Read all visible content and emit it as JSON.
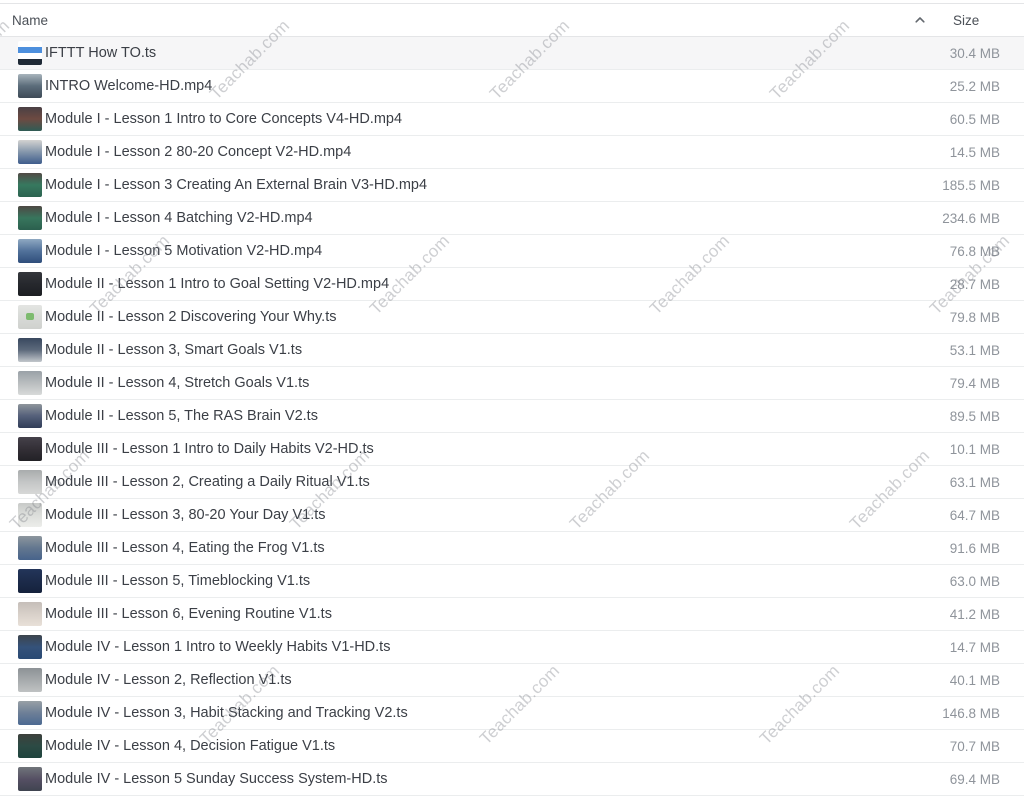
{
  "watermark": {
    "text": "Teachab.com"
  },
  "header": {
    "name_label": "Name",
    "size_label": "Size",
    "sort_direction": "ascending"
  },
  "files": [
    {
      "name": "IFTTT How TO.ts",
      "size": "30.4 MB",
      "highlighted": true,
      "striped": true,
      "thumb": [
        "#ffffff",
        "#4d8fdd",
        "#ffffff",
        "#1f2a36"
      ]
    },
    {
      "name": "INTRO Welcome-HD.mp4",
      "size": "25.2 MB",
      "thumb": [
        "#a8b4bc",
        "#5b6c7a",
        "#3e4a56"
      ]
    },
    {
      "name": "Module I - Lesson 1 Intro to Core Concepts V4-HD.mp4",
      "size": "60.5 MB",
      "thumb": [
        "#4a4044",
        "#6e4a42",
        "#2f5c55"
      ]
    },
    {
      "name": "Module I - Lesson 2 80-20 Concept V2-HD.mp4",
      "size": "14.5 MB",
      "thumb": [
        "#d3d3d1",
        "#8496ab",
        "#3f5d8c"
      ]
    },
    {
      "name": "Module I - Lesson 3 Creating An External Brain V3-HD.mp4",
      "size": "185.5 MB",
      "thumb": [
        "#514a46",
        "#37795f",
        "#2c6350"
      ]
    },
    {
      "name": "Module I - Lesson 4 Batching V2-HD.mp4",
      "size": "234.6 MB",
      "thumb": [
        "#4e4844",
        "#38765d",
        "#2b5f4e"
      ]
    },
    {
      "name": "Module I - Lesson 5 Motivation V2-HD.mp4",
      "size": "76.8 MB",
      "thumb": [
        "#8fa9c2",
        "#51719a",
        "#2f4d7b"
      ]
    },
    {
      "name": "Module II - Lesson 1 Intro to Goal Setting V2-HD.mp4",
      "size": "28.7 MB",
      "thumb": [
        "#35373c",
        "#26282d",
        "#1c1e22"
      ]
    },
    {
      "name": "Module II - Lesson 2 Discovering Your Why.ts",
      "size": "79.8 MB",
      "dot": "#7dbb6f",
      "thumb": [
        "#e4e5e3",
        "#d8dad7",
        "#cfd1ce"
      ]
    },
    {
      "name": "Module II - Lesson 3, Smart Goals V1.ts",
      "size": "53.1 MB",
      "thumb": [
        "#39485f",
        "#5d6a7c",
        "#c2c7cc"
      ]
    },
    {
      "name": "Module II - Lesson 4, Stretch Goals V1.ts",
      "size": "79.4 MB",
      "thumb": [
        "#9aa1a7",
        "#b9bdbf",
        "#d8dad9"
      ]
    },
    {
      "name": "Module II - Lesson 5, The RAS Brain V2.ts",
      "size": "89.5 MB",
      "thumb": [
        "#8e959b",
        "#55607a",
        "#303d58"
      ]
    },
    {
      "name": "Module III - Lesson 1 Intro to Daily Habits V2-HD.ts",
      "size": "10.1 MB",
      "thumb": [
        "#45414a",
        "#332f36",
        "#222126"
      ]
    },
    {
      "name": "Module III - Lesson 2, Creating a Daily Ritual V1.ts",
      "size": "63.1 MB",
      "thumb": [
        "#a9acad",
        "#c4c6c6",
        "#d7d8d7"
      ]
    },
    {
      "name": "Module III - Lesson 3, 80-20 Your Day V1.ts",
      "size": "64.7 MB",
      "thumb": [
        "#c8cac8",
        "#dcdedb",
        "#ecedea"
      ]
    },
    {
      "name": "Module III - Lesson 4, Eating the Frog V1.ts",
      "size": "91.6 MB",
      "thumb": [
        "#8d969e",
        "#63778f",
        "#47638b"
      ]
    },
    {
      "name": "Module III - Lesson 5, Timeblocking V1.ts",
      "size": "63.0 MB",
      "thumb": [
        "#23355a",
        "#1c2b4a",
        "#15223c"
      ]
    },
    {
      "name": "Module III - Lesson 6, Evening Routine V1.ts",
      "size": "41.2 MB",
      "thumb": [
        "#c5beb9",
        "#d8d0c9",
        "#e8e0d8"
      ]
    },
    {
      "name": "Module IV - Lesson 1 Intro to Weekly Habits V1-HD.ts",
      "size": "14.7 MB",
      "thumb": [
        "#3d444c",
        "#35527a",
        "#2a4a74"
      ]
    },
    {
      "name": "Module IV - Lesson 2, Reflection V1.ts",
      "size": "40.1 MB",
      "thumb": [
        "#8d9296",
        "#a6aaac",
        "#bfc2c3"
      ]
    },
    {
      "name": "Module IV - Lesson 3, Habit Stacking and Tracking V2.ts",
      "size": "146.8 MB",
      "thumb": [
        "#98a0a6",
        "#6d7f97",
        "#4c6a92"
      ]
    },
    {
      "name": "Module IV - Lesson 4, Decision Fatigue V1.ts",
      "size": "70.7 MB",
      "thumb": [
        "#3d403c",
        "#2c4a44",
        "#1e443d"
      ]
    },
    {
      "name": "Module IV - Lesson 5 Sunday Success System-HD.ts",
      "size": "69.4 MB",
      "thumb": [
        "#70747a",
        "#565064",
        "#3f4450"
      ]
    }
  ]
}
